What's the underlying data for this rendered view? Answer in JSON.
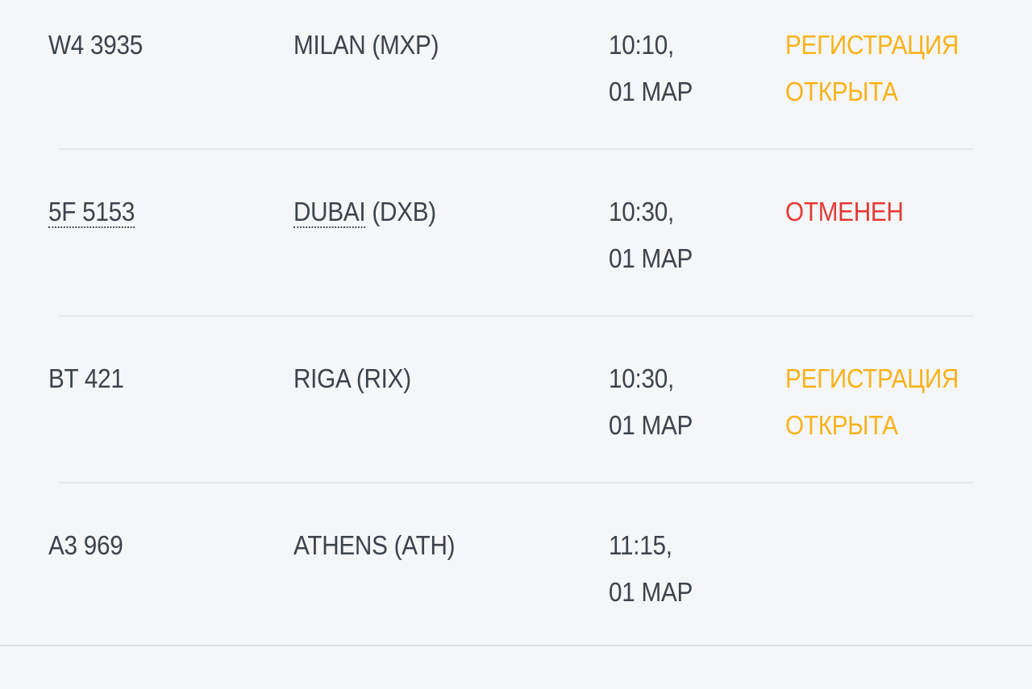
{
  "colors": {
    "text": "#3d434c",
    "checkin_open": "#f8b21a",
    "cancelled": "#e53935",
    "background": "#f4f6f8"
  },
  "flights": [
    {
      "flight": "W4 3935",
      "destination": "MILAN (MXP)",
      "time": "10:10,",
      "date": "01 MAP",
      "status": "РЕГИСТРАЦИЯ ОТКРЫТА",
      "status_type": "checkin_open"
    },
    {
      "flight": "5F 5153",
      "destination_city": "DUBAI",
      "destination_code": " (DXB)",
      "time": "10:30,",
      "date": "01 MAP",
      "status": "ОТМЕНЕН",
      "status_type": "cancelled"
    },
    {
      "flight": "BT 421",
      "destination": "RIGA (RIX)",
      "time": "10:30,",
      "date": "01 MAP",
      "status": "РЕГИСТРАЦИЯ ОТКРЫТА",
      "status_type": "checkin_open"
    },
    {
      "flight": "A3 969",
      "destination": "ATHENS (ATH)",
      "time": "11:15,",
      "date": "01 MAP",
      "status": "",
      "status_type": "none"
    }
  ]
}
